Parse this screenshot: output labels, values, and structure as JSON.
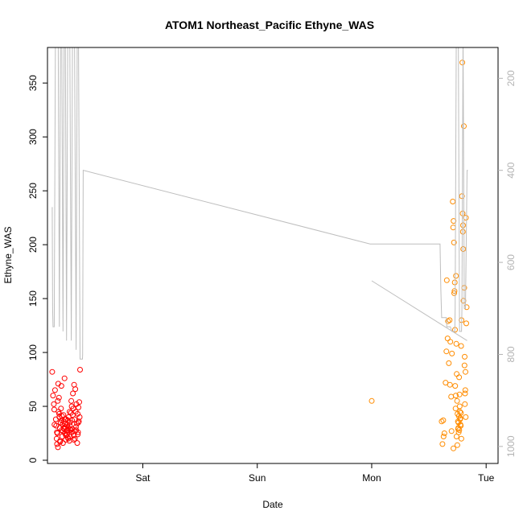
{
  "chart_data": {
    "type": "scatter",
    "title": "ATOM1 Northeast_Pacific Ethyne_WAS",
    "xlabel": "Date",
    "ylabel": "Ethyne_WAS",
    "xlim": [
      "2016-08-19T04:00",
      "2016-08-23T02:30"
    ],
    "ylim": [
      0,
      380
    ],
    "x_ticks": [
      {
        "label": "Sat",
        "x": "2016-08-20T00:00"
      },
      {
        "label": "Sun",
        "x": "2016-08-21T00:00"
      },
      {
        "label": "Mon",
        "x": "2016-08-22T00:00"
      },
      {
        "label": "Tue",
        "x": "2016-08-23T00:00"
      }
    ],
    "y_ticks": [
      0,
      50,
      100,
      150,
      200,
      250,
      300,
      350
    ],
    "y2_ticks": [
      200,
      400,
      600,
      800,
      1000
    ],
    "y2lim": [
      1030,
      140
    ],
    "y2_inverted": true,
    "grid": false,
    "legend": "none",
    "colors": {
      "flight1_points": "#ff0000",
      "flight2_points": "#ff8c00",
      "altitude_line": "#bebebe"
    },
    "series": [
      {
        "color": "#ff0000",
        "kind": "points",
        "points": [
          [
            "2016-08-19T05:00",
            82
          ],
          [
            "2016-08-19T05:10",
            60
          ],
          [
            "2016-08-19T05:20",
            52
          ],
          [
            "2016-08-19T05:25",
            47
          ],
          [
            "2016-08-19T05:35",
            65
          ],
          [
            "2016-08-19T05:45",
            38
          ],
          [
            "2016-08-19T05:50",
            32
          ],
          [
            "2016-08-19T05:55",
            20
          ],
          [
            "2016-08-19T06:00",
            15
          ],
          [
            "2016-08-19T06:05",
            25
          ],
          [
            "2016-08-19T06:10",
            55
          ],
          [
            "2016-08-19T06:15",
            71
          ],
          [
            "2016-08-19T06:20",
            45
          ],
          [
            "2016-08-19T06:25",
            58
          ],
          [
            "2016-08-19T06:30",
            40
          ],
          [
            "2016-08-19T06:35",
            30
          ],
          [
            "2016-08-19T06:40",
            18
          ],
          [
            "2016-08-19T06:45",
            35
          ],
          [
            "2016-08-19T06:50",
            48
          ],
          [
            "2016-08-19T06:55",
            69
          ],
          [
            "2016-08-19T07:00",
            28
          ],
          [
            "2016-08-19T07:05",
            22
          ],
          [
            "2016-08-19T07:10",
            33
          ],
          [
            "2016-08-19T07:15",
            16
          ],
          [
            "2016-08-19T07:20",
            42
          ],
          [
            "2016-08-19T07:25",
            36
          ],
          [
            "2016-08-19T07:30",
            29
          ],
          [
            "2016-08-19T07:35",
            76
          ],
          [
            "2016-08-19T07:40",
            25
          ],
          [
            "2016-08-19T07:45",
            31
          ],
          [
            "2016-08-19T07:50",
            19
          ],
          [
            "2016-08-19T07:55",
            38
          ],
          [
            "2016-08-19T08:00",
            27
          ],
          [
            "2016-08-19T08:05",
            24
          ],
          [
            "2016-08-19T08:10",
            33
          ],
          [
            "2016-08-19T08:15",
            21
          ],
          [
            "2016-08-19T08:20",
            30
          ],
          [
            "2016-08-19T08:25",
            40
          ],
          [
            "2016-08-19T08:30",
            26
          ],
          [
            "2016-08-19T08:35",
            18
          ],
          [
            "2016-08-19T08:40",
            35
          ],
          [
            "2016-08-19T08:45",
            22
          ],
          [
            "2016-08-19T08:50",
            28
          ],
          [
            "2016-08-19T08:55",
            44
          ],
          [
            "2016-08-19T09:00",
            55
          ],
          [
            "2016-08-19T09:05",
            50
          ],
          [
            "2016-08-19T09:10",
            37
          ],
          [
            "2016-08-19T09:15",
            29
          ],
          [
            "2016-08-19T09:20",
            62
          ],
          [
            "2016-08-19T09:25",
            48
          ],
          [
            "2016-08-19T09:30",
            23
          ],
          [
            "2016-08-19T09:35",
            70
          ],
          [
            "2016-08-19T09:40",
            38
          ],
          [
            "2016-08-19T09:45",
            20
          ],
          [
            "2016-08-19T09:50",
            66
          ],
          [
            "2016-08-19T09:55",
            45
          ],
          [
            "2016-08-19T10:00",
            28
          ],
          [
            "2016-08-19T10:05",
            52
          ],
          [
            "2016-08-19T10:10",
            34
          ],
          [
            "2016-08-19T10:15",
            16
          ],
          [
            "2016-08-19T10:20",
            43
          ],
          [
            "2016-08-19T10:25",
            26
          ],
          [
            "2016-08-19T10:30",
            49
          ],
          [
            "2016-08-19T10:35",
            36
          ],
          [
            "2016-08-19T10:40",
            54
          ],
          [
            "2016-08-19T10:45",
            40
          ],
          [
            "2016-08-19T10:50",
            84
          ],
          [
            "2016-08-19T06:12",
            12
          ],
          [
            "2016-08-19T06:38",
            17
          ],
          [
            "2016-08-19T07:02",
            41
          ],
          [
            "2016-08-19T07:28",
            30
          ],
          [
            "2016-08-19T07:52",
            23
          ],
          [
            "2016-08-19T08:18",
            37
          ],
          [
            "2016-08-19T08:42",
            32
          ],
          [
            "2016-08-19T09:08",
            26
          ],
          [
            "2016-08-19T09:32",
            19
          ],
          [
            "2016-08-19T09:58",
            31
          ],
          [
            "2016-08-19T10:22",
            24
          ],
          [
            "2016-08-19T05:28",
            33
          ],
          [
            "2016-08-19T05:58",
            26
          ],
          [
            "2016-08-19T06:28",
            43
          ],
          [
            "2016-08-19T06:58",
            37
          ],
          [
            "2016-08-19T07:38",
            34
          ],
          [
            "2016-08-19T08:08",
            28
          ],
          [
            "2016-08-19T08:38",
            45
          ],
          [
            "2016-08-19T09:18",
            42
          ],
          [
            "2016-08-19T09:48",
            27
          ],
          [
            "2016-08-19T10:28",
            35
          ],
          [
            "2016-08-19T07:12",
            27
          ],
          [
            "2016-08-19T07:42",
            38
          ],
          [
            "2016-08-19T08:22",
            20
          ],
          [
            "2016-08-19T08:48",
            29
          ]
        ]
      },
      {
        "color": "#ff8c00",
        "kind": "points",
        "points": [
          [
            "2016-08-22T00:00",
            55
          ],
          [
            "2016-08-22T14:40",
            36
          ],
          [
            "2016-08-22T14:50",
            15
          ],
          [
            "2016-08-22T15:00",
            37
          ],
          [
            "2016-08-22T15:05",
            22
          ],
          [
            "2016-08-22T15:15",
            25
          ],
          [
            "2016-08-22T15:30",
            72
          ],
          [
            "2016-08-22T15:40",
            101
          ],
          [
            "2016-08-22T15:45",
            167
          ],
          [
            "2016-08-22T15:55",
            113
          ],
          [
            "2016-08-22T16:00",
            129
          ],
          [
            "2016-08-22T16:10",
            90
          ],
          [
            "2016-08-22T16:20",
            130
          ],
          [
            "2016-08-22T16:25",
            70
          ],
          [
            "2016-08-22T16:30",
            110
          ],
          [
            "2016-08-22T16:40",
            59
          ],
          [
            "2016-08-22T16:50",
            99
          ],
          [
            "2016-08-22T17:00",
            240
          ],
          [
            "2016-08-22T17:05",
            216
          ],
          [
            "2016-08-22T17:10",
            222
          ],
          [
            "2016-08-22T17:15",
            202
          ],
          [
            "2016-08-22T17:18",
            155
          ],
          [
            "2016-08-22T17:22",
            157
          ],
          [
            "2016-08-22T17:25",
            165
          ],
          [
            "2016-08-22T17:30",
            69
          ],
          [
            "2016-08-22T17:35",
            48
          ],
          [
            "2016-08-22T17:40",
            171
          ],
          [
            "2016-08-22T17:45",
            108
          ],
          [
            "2016-08-22T17:50",
            80
          ],
          [
            "2016-08-22T17:55",
            55
          ],
          [
            "2016-08-22T18:00",
            43
          ],
          [
            "2016-08-22T18:05",
            36
          ],
          [
            "2016-08-22T18:10",
            30
          ],
          [
            "2016-08-22T18:15",
            26
          ],
          [
            "2016-08-22T18:20",
            77
          ],
          [
            "2016-08-22T18:25",
            61
          ],
          [
            "2016-08-22T18:30",
            45
          ],
          [
            "2016-08-22T18:35",
            39
          ],
          [
            "2016-08-22T18:40",
            32
          ],
          [
            "2016-08-22T18:45",
            106
          ],
          [
            "2016-08-22T18:50",
            130
          ],
          [
            "2016-08-22T18:55",
            245
          ],
          [
            "2016-08-22T19:00",
            369
          ],
          [
            "2016-08-22T19:05",
            229
          ],
          [
            "2016-08-22T19:10",
            218
          ],
          [
            "2016-08-22T19:15",
            148
          ],
          [
            "2016-08-22T19:20",
            310
          ],
          [
            "2016-08-22T19:25",
            160
          ],
          [
            "2016-08-22T19:30",
            96
          ],
          [
            "2016-08-22T19:35",
            62
          ],
          [
            "2016-08-22T19:40",
            82
          ],
          [
            "2016-08-22T19:45",
            225
          ],
          [
            "2016-08-22T19:50",
            127
          ],
          [
            "2016-08-22T19:55",
            142
          ],
          [
            "2016-08-22T18:12",
            35
          ],
          [
            "2016-08-22T18:17",
            41
          ],
          [
            "2016-08-22T18:22",
            28
          ],
          [
            "2016-08-22T18:27",
            50
          ],
          [
            "2016-08-22T18:32",
            38
          ],
          [
            "2016-08-22T18:37",
            33
          ],
          [
            "2016-08-22T18:42",
            44
          ],
          [
            "2016-08-22T18:07",
            29
          ],
          [
            "2016-08-22T17:58",
            14
          ],
          [
            "2016-08-22T17:48",
            22
          ],
          [
            "2016-08-22T19:28",
            88
          ],
          [
            "2016-08-22T19:33",
            52
          ],
          [
            "2016-08-22T19:38",
            65
          ],
          [
            "2016-08-22T19:43",
            40
          ],
          [
            "2016-08-22T19:08",
            212
          ],
          [
            "2016-08-22T19:12",
            196
          ],
          [
            "2016-08-22T17:28",
            121
          ],
          [
            "2016-08-22T16:45",
            27
          ],
          [
            "2016-08-22T17:08",
            11
          ],
          [
            "2016-08-22T17:38",
            60
          ],
          [
            "2016-08-22T18:48",
            20
          ]
        ]
      },
      {
        "color": "#bebebe",
        "kind": "line",
        "axis": "right",
        "segments": [
          [
            [
              "2016-08-19T05:00",
              480
            ],
            [
              "2016-08-19T05:05",
              700
            ],
            [
              "2016-08-19T05:10",
              740
            ],
            [
              "2016-08-19T05:25",
              740
            ],
            [
              "2016-08-19T05:40",
              100
            ],
            [
              "2016-08-19T06:15",
              100
            ],
            [
              "2016-08-19T06:30",
              740
            ],
            [
              "2016-08-19T06:45",
              100
            ],
            [
              "2016-08-19T07:00",
              100
            ],
            [
              "2016-08-19T07:15",
              750
            ],
            [
              "2016-08-19T07:30",
              100
            ],
            [
              "2016-08-19T07:45",
              100
            ],
            [
              "2016-08-19T08:00",
              770
            ],
            [
              "2016-08-19T08:15",
              100
            ],
            [
              "2016-08-19T08:40",
              100
            ],
            [
              "2016-08-19T09:00",
              770
            ],
            [
              "2016-08-19T09:15",
              100
            ],
            [
              "2016-08-19T09:40",
              100
            ],
            [
              "2016-08-19T10:00",
              790
            ],
            [
              "2016-08-19T10:15",
              100
            ],
            [
              "2016-08-19T10:30",
              100
            ],
            [
              "2016-08-19T10:50",
              810
            ],
            [
              "2016-08-19T11:20",
              810
            ],
            [
              "2016-08-19T11:22",
              800
            ],
            [
              "2016-08-19T11:30",
              400
            ],
            [
              "2016-08-21T23:40",
              560
            ],
            [
              "2016-08-22T14:20",
              560
            ],
            [
              "2016-08-22T14:30",
              660
            ],
            [
              "2016-08-22T14:40",
              720
            ],
            [
              "2016-08-22T15:40",
              720
            ],
            [
              "2016-08-22T15:45",
              740
            ],
            [
              "2016-08-22T16:30",
              740
            ],
            [
              "2016-08-22T16:50",
              750
            ],
            [
              "2016-08-22T17:25",
              750
            ],
            [
              "2016-08-22T17:30",
              700
            ],
            [
              "2016-08-22T17:45",
              100
            ],
            [
              "2016-08-22T18:10",
              100
            ],
            [
              "2016-08-22T18:25",
              750
            ],
            [
              "2016-08-22T18:50",
              750
            ],
            [
              "2016-08-22T18:55",
              700
            ],
            [
              "2016-08-22T19:10",
              100
            ],
            [
              "2016-08-22T19:25",
              700
            ],
            [
              "2016-08-22T19:40",
              700
            ],
            [
              "2016-08-22T20:00",
              400
            ],
            [
              "2016-08-22T20:10",
              400
            ]
          ],
          [
            [
              "2016-08-22T00:00",
              640
            ],
            [
              "2016-08-22T20:00",
              770
            ]
          ]
        ]
      }
    ]
  }
}
